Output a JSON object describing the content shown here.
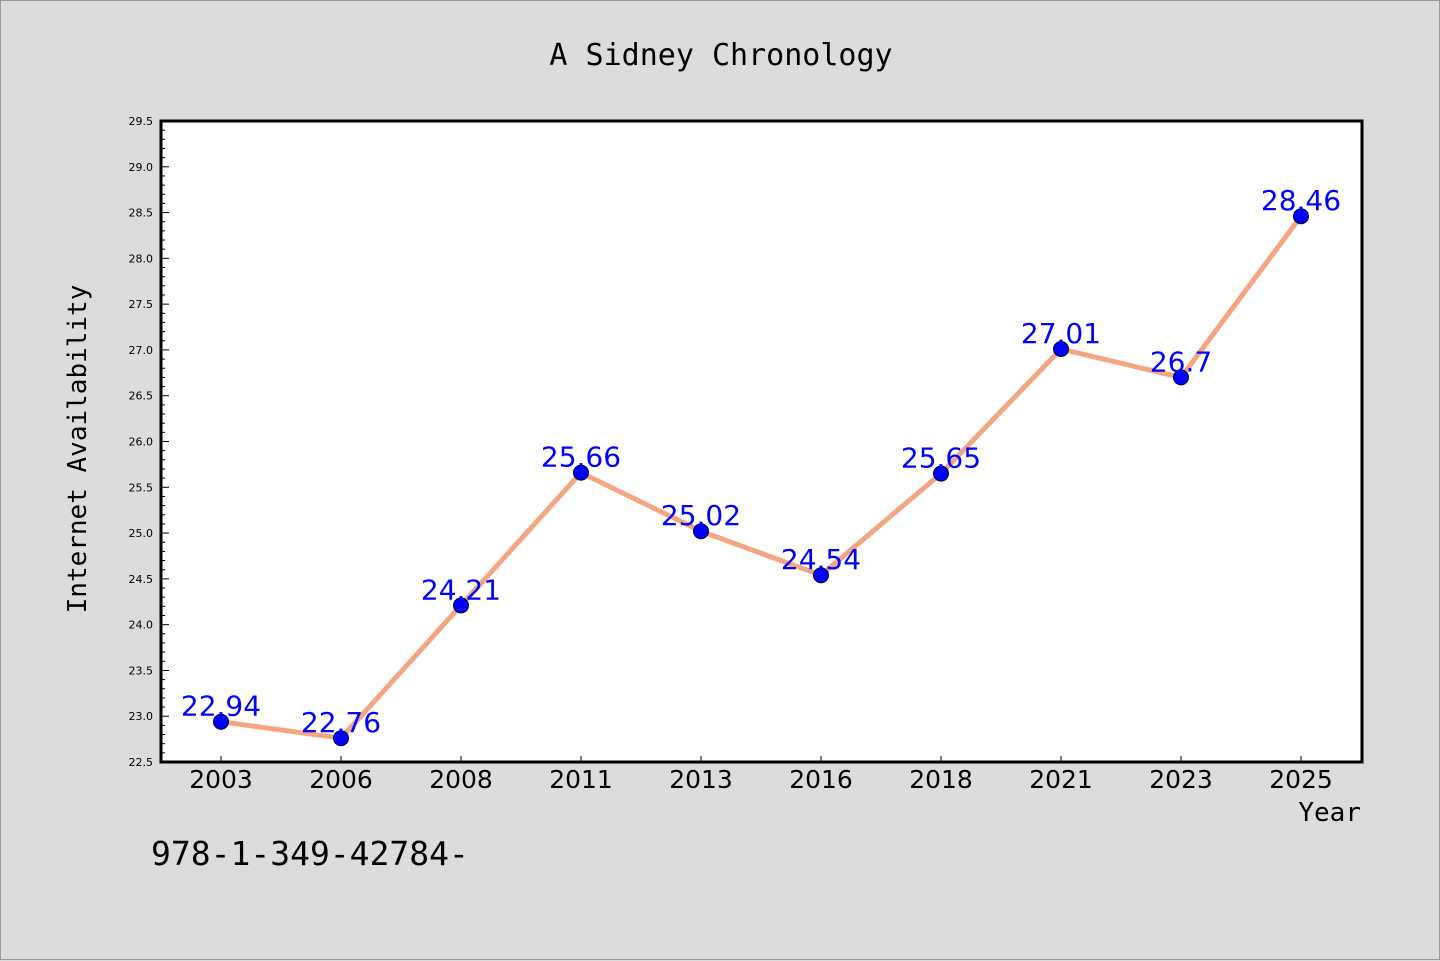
{
  "chart_data": {
    "type": "line",
    "title": "A Sidney Chronology",
    "xlabel": "Year",
    "ylabel": "Internet Availability",
    "categories": [
      "2003",
      "2006",
      "2008",
      "2011",
      "2013",
      "2016",
      "2018",
      "2021",
      "2023",
      "2025"
    ],
    "values": [
      22.94,
      22.76,
      24.21,
      25.66,
      25.02,
      24.54,
      25.65,
      27.01,
      26.7,
      28.46
    ],
    "data_labels": [
      "22.94",
      "22.76",
      "24.21",
      "25.66",
      "25.02",
      "24.54",
      "25.65",
      "27.01",
      "26.7",
      "28.46"
    ],
    "ylim": [
      22.5,
      29.5
    ],
    "yticks": [
      "22.5",
      "23.0",
      "23.5",
      "24.0",
      "24.5",
      "25.0",
      "25.5",
      "26.0",
      "26.5",
      "27.0",
      "27.5",
      "28.0",
      "28.5",
      "29.0",
      "29.5"
    ],
    "grid": false,
    "legend": "none",
    "line_color": "#f4a582",
    "marker_color": "#0000ff",
    "label_color": "#0000ff",
    "plot_background": "#ffffff",
    "page_background": "#dcdcdc"
  },
  "footnote": "978-1-349-42784-"
}
